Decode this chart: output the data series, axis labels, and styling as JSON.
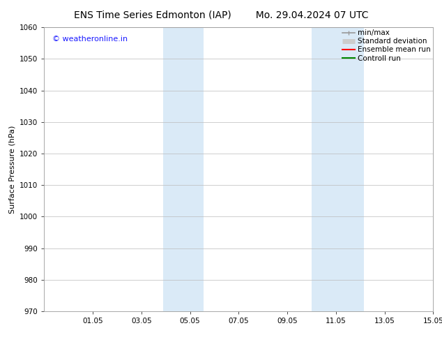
{
  "title_left": "ENS Time Series Edmonton (IAP)",
  "title_right": "Mo. 29.04.2024 07 UTC",
  "ylabel": "Surface Pressure (hPa)",
  "ylim": [
    970,
    1060
  ],
  "yticks": [
    970,
    980,
    990,
    1000,
    1010,
    1020,
    1030,
    1040,
    1050,
    1060
  ],
  "xlim": [
    0,
    16
  ],
  "xtick_positions": [
    2,
    4,
    6,
    8,
    10,
    12,
    14,
    16
  ],
  "xtick_labels": [
    "01.05",
    "03.05",
    "05.05",
    "07.05",
    "09.05",
    "11.05",
    "13.05",
    "15.05"
  ],
  "shaded_bands": [
    {
      "x_start": 4.9,
      "x_end": 6.55
    },
    {
      "x_start": 11.0,
      "x_end": 13.15
    }
  ],
  "shaded_color": "#daeaf7",
  "background_color": "#ffffff",
  "grid_color": "#bbbbbb",
  "watermark_text": "© weatheronline.in",
  "watermark_color": "#1a1aff",
  "legend_entries": [
    {
      "label": "min/max",
      "color": "#999999",
      "lw": 1.2
    },
    {
      "label": "Standard deviation",
      "color": "#cccccc",
      "lw": 5
    },
    {
      "label": "Ensemble mean run",
      "color": "#ff0000",
      "lw": 1.5
    },
    {
      "label": "Controll run",
      "color": "#008800",
      "lw": 1.5
    }
  ],
  "title_fontsize": 10,
  "ylabel_fontsize": 8,
  "tick_fontsize": 7.5,
  "legend_fontsize": 7.5,
  "watermark_fontsize": 8
}
